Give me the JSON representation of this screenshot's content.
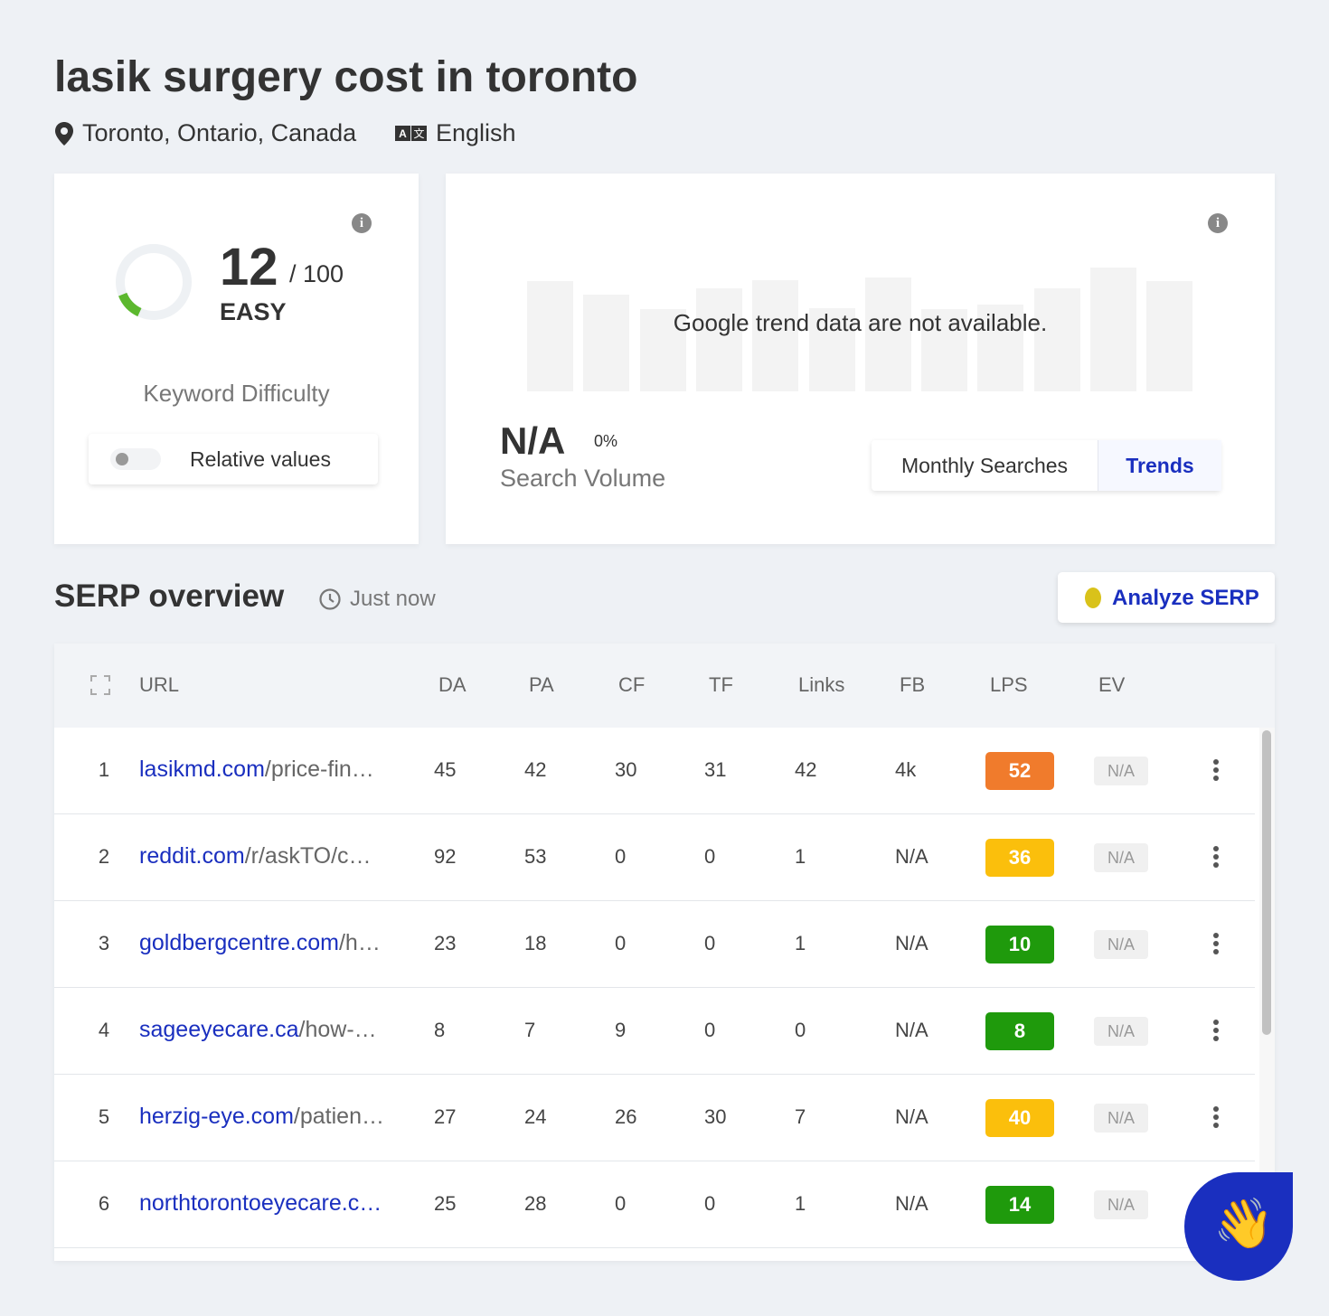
{
  "header": {
    "title": "lasik surgery cost in toronto",
    "location": "Toronto, Ontario, Canada",
    "language": "English"
  },
  "difficulty": {
    "score": 12,
    "max": {
      "value": 100,
      "label": "/ 100"
    },
    "level": "EASY",
    "label": "Keyword Difficulty",
    "toggle": "Relative values",
    "color": "#5cb82e"
  },
  "volume": {
    "notice": "Google trend data are not available.",
    "value": "N/A",
    "change": "0%",
    "label": "Search Volume",
    "tabs": [
      "Monthly Searches",
      "Trends"
    ]
  },
  "serp": {
    "title": "SERP overview",
    "time": "Just now",
    "button": "Analyze SERP",
    "columns": [
      "URL",
      "DA",
      "PA",
      "CF",
      "TF",
      "Links",
      "FB",
      "LPS",
      "EV"
    ],
    "rows": [
      {
        "rank": 1,
        "domain": "lasikmd.com",
        "path": "/price-fin…",
        "cells": [
          45,
          42,
          30,
          31,
          42,
          "4k"
        ],
        "lps": 52,
        "lps_color": "#f07b2c",
        "ev": "N/A"
      },
      {
        "rank": 2,
        "domain": "reddit.com",
        "path": "/r/askTO/c…",
        "cells": [
          92,
          53,
          0,
          0,
          1,
          "N/A"
        ],
        "lps": 36,
        "lps_color": "#fbbf0c",
        "ev": "N/A"
      },
      {
        "rank": 3,
        "domain": "goldbergcentre.com",
        "path": "/h…",
        "cells": [
          23,
          18,
          0,
          0,
          1,
          "N/A"
        ],
        "lps": 10,
        "lps_color": "#1f9a0c",
        "ev": "N/A"
      },
      {
        "rank": 4,
        "domain": "sageeyecare.ca",
        "path": "/how-…",
        "cells": [
          8,
          7,
          9,
          0,
          0,
          "N/A"
        ],
        "lps": 8,
        "lps_color": "#1f9a0c",
        "ev": "N/A"
      },
      {
        "rank": 5,
        "domain": "herzig-eye.com",
        "path": "/patien…",
        "cells": [
          27,
          24,
          26,
          30,
          7,
          "N/A"
        ],
        "lps": 40,
        "lps_color": "#fbbf0c",
        "ev": "N/A"
      },
      {
        "rank": 6,
        "domain": "northtorontoeyecare.c…",
        "path": "",
        "cells": [
          25,
          28,
          0,
          0,
          1,
          "N/A"
        ],
        "lps": 14,
        "lps_color": "#1f9a0c",
        "ev": "N/A"
      }
    ]
  }
}
